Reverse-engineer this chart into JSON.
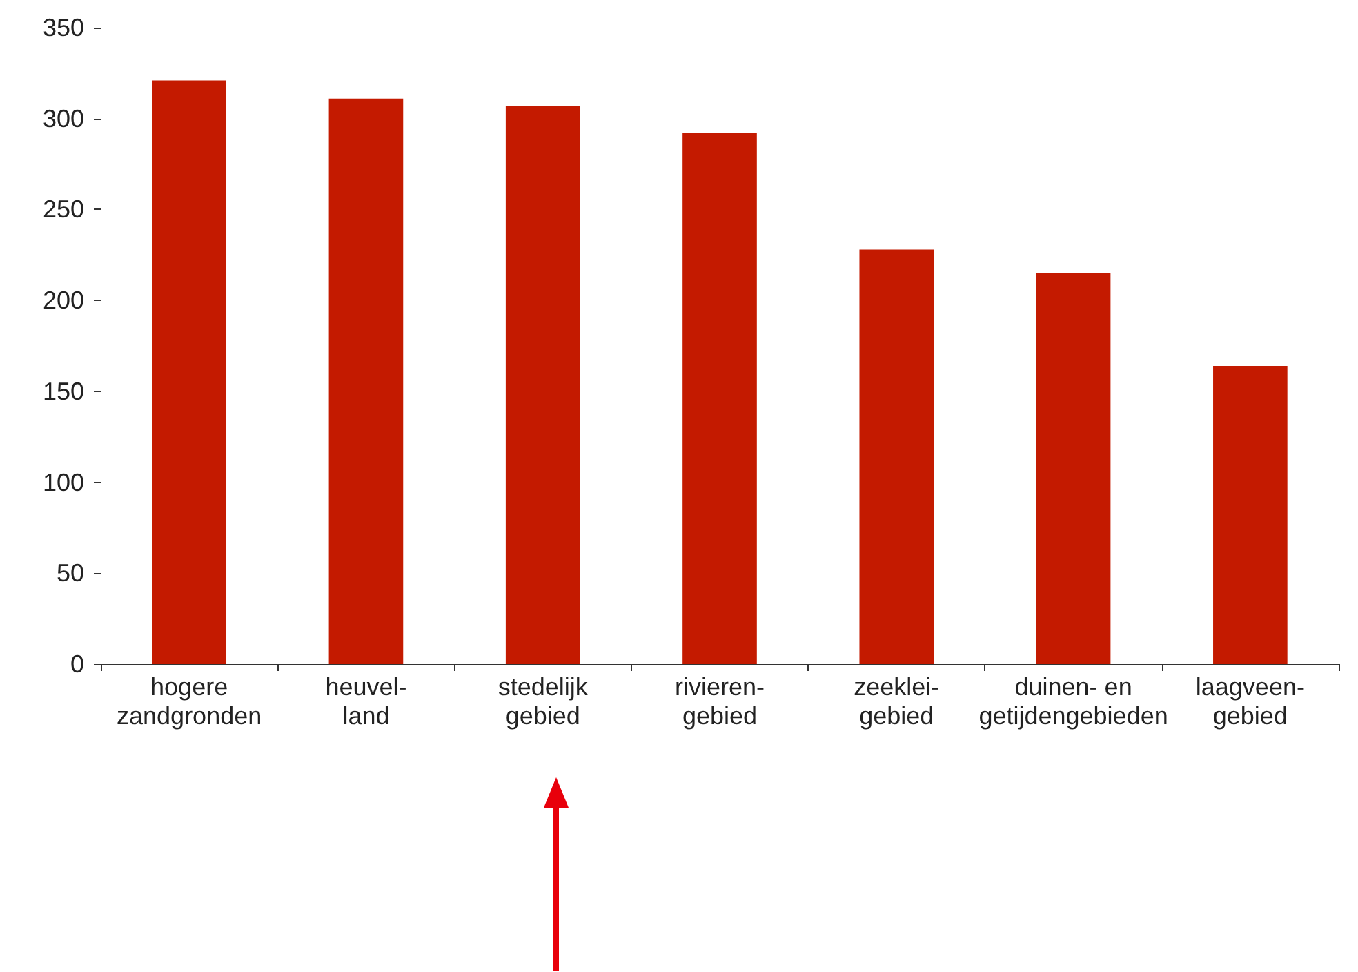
{
  "chart_data": {
    "type": "bar",
    "categories": [
      "hogere\nzandgronden",
      "heuvel-\nland",
      "stedelijk\ngebied",
      "rivieren-\ngebied",
      "zeeklei-\ngebied",
      "duinen- en\ngetijdengebieden",
      "laagveen-\ngebied"
    ],
    "values": [
      321,
      311,
      307,
      292,
      228,
      215,
      164
    ],
    "color": "#c41a00",
    "ylim": [
      0,
      350
    ],
    "yticks": [
      0,
      50,
      100,
      150,
      200,
      250,
      300,
      350
    ],
    "grid": false
  }
}
